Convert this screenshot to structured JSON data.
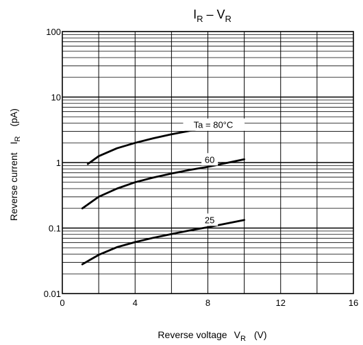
{
  "chart_data": {
    "type": "line",
    "title": {
      "main": "I",
      "sub": "R",
      "rest": " – V",
      "sub2": "R"
    },
    "xlabel": {
      "text": "Reverse voltage",
      "var": "V",
      "sub": "R",
      "unit": "(V)"
    },
    "ylabel": {
      "text": "Reverse current",
      "var": "I",
      "sub": "R",
      "unit": "(pA)"
    },
    "xlim": [
      0,
      16
    ],
    "ylim": [
      0.01,
      100
    ],
    "yscale": "log",
    "grid": true,
    "x_ticks": [
      "0",
      "4",
      "8",
      "12",
      "16"
    ],
    "y_ticks": [
      "0.01",
      "0.1",
      "1",
      "10",
      "100"
    ],
    "series": [
      {
        "name": "Ta = 80°C",
        "x": [
          1.4,
          2,
          3,
          4,
          5,
          6,
          7,
          8,
          9,
          10
        ],
        "y": [
          0.95,
          1.25,
          1.65,
          2.0,
          2.35,
          2.7,
          3.05,
          3.4,
          3.75,
          4.0
        ]
      },
      {
        "name": "60",
        "x": [
          1.1,
          2,
          3,
          4,
          5,
          6,
          7,
          8,
          9,
          10
        ],
        "y": [
          0.2,
          0.3,
          0.4,
          0.5,
          0.59,
          0.68,
          0.77,
          0.86,
          0.98,
          1.12
        ]
      },
      {
        "name": "25",
        "x": [
          1.1,
          2,
          3,
          4,
          5,
          6,
          7,
          8,
          9,
          10
        ],
        "y": [
          0.028,
          0.039,
          0.051,
          0.061,
          0.071,
          0.081,
          0.092,
          0.103,
          0.117,
          0.133
        ]
      }
    ]
  }
}
